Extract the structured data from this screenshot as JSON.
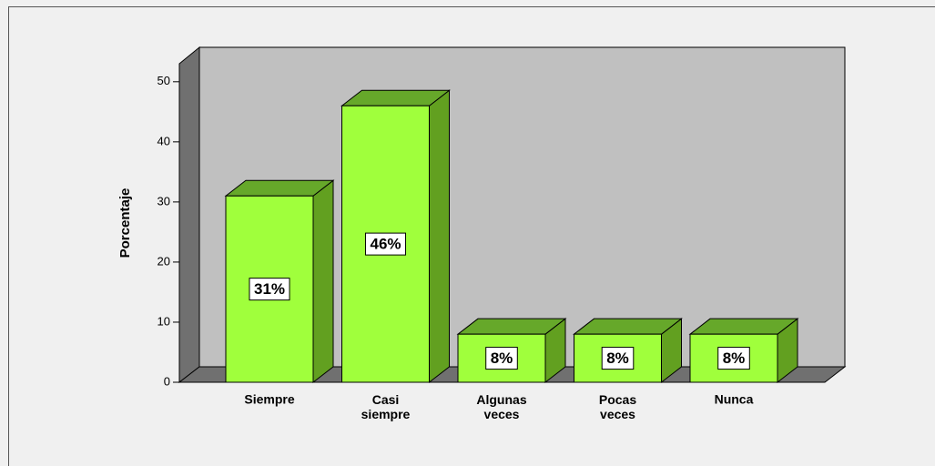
{
  "chart_data": {
    "type": "bar3d",
    "y_label": "Porcentaje",
    "categories": [
      "Siempre",
      "Casi siempre",
      "Algunas veces",
      "Pocas veces",
      "Nunca"
    ],
    "values": [
      31,
      46,
      8,
      8,
      8
    ],
    "value_labels": [
      "31%",
      "46%",
      "8%",
      "8%",
      "8%"
    ],
    "color": "#a0ff3c",
    "ylim": [
      0,
      53
    ],
    "yticks": [
      0,
      10,
      20,
      30,
      40,
      50
    ],
    "grid": false
  }
}
